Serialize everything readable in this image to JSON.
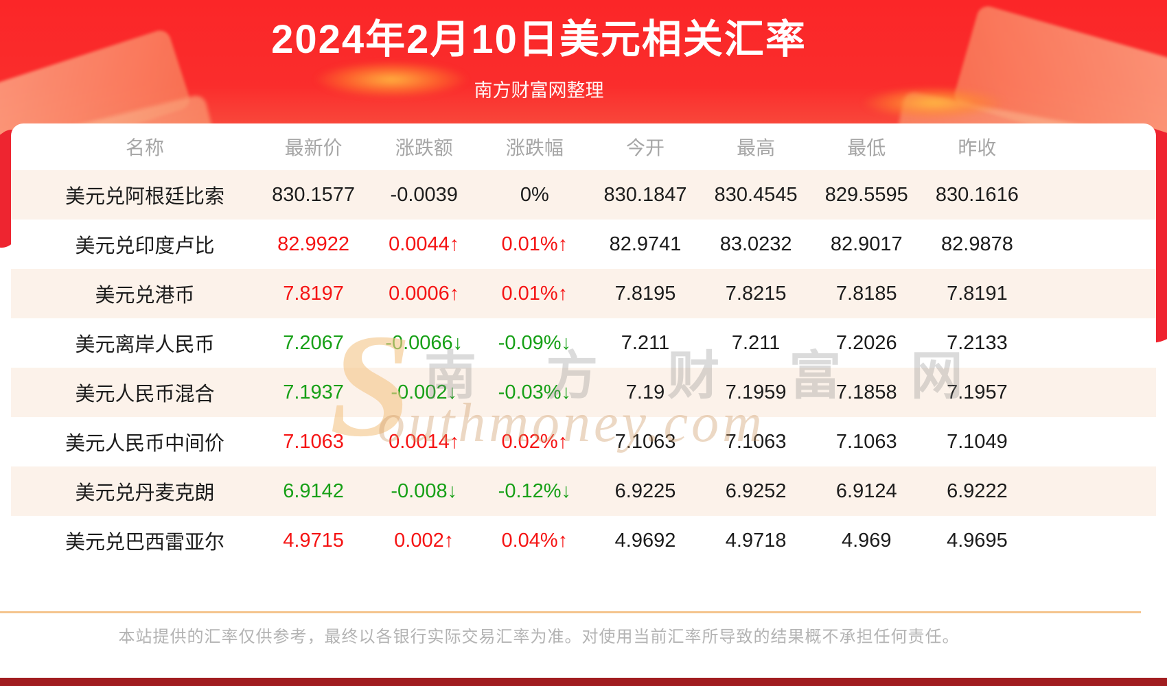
{
  "header": {
    "title": "2024年2月10日美元相关汇率",
    "subtitle": "南方财富网整理"
  },
  "table": {
    "columns": [
      "名称",
      "最新价",
      "涨跌额",
      "涨跌幅",
      "今开",
      "最高",
      "最低",
      "昨收"
    ],
    "rows": [
      {
        "name": "美元兑阿根廷比索",
        "latest": "830.1577",
        "change": "-0.0039",
        "change_pct": "0%",
        "open": "830.1847",
        "high": "830.4545",
        "low": "829.5595",
        "prev_close": "830.1616",
        "trend": "flat"
      },
      {
        "name": "美元兑印度卢比",
        "latest": "82.9922",
        "change": "0.0044↑",
        "change_pct": "0.01%↑",
        "open": "82.9741",
        "high": "83.0232",
        "low": "82.9017",
        "prev_close": "82.9878",
        "trend": "up"
      },
      {
        "name": "美元兑港币",
        "latest": "7.8197",
        "change": "0.0006↑",
        "change_pct": "0.01%↑",
        "open": "7.8195",
        "high": "7.8215",
        "low": "7.8185",
        "prev_close": "7.8191",
        "trend": "up"
      },
      {
        "name": "美元离岸人民币",
        "latest": "7.2067",
        "change": "-0.0066↓",
        "change_pct": "-0.09%↓",
        "open": "7.211",
        "high": "7.211",
        "low": "7.2026",
        "prev_close": "7.2133",
        "trend": "down"
      },
      {
        "name": "美元人民币混合",
        "latest": "7.1937",
        "change": "-0.002↓",
        "change_pct": "-0.03%↓",
        "open": "7.19",
        "high": "7.1959",
        "low": "7.1858",
        "prev_close": "7.1957",
        "trend": "down"
      },
      {
        "name": "美元人民币中间价",
        "latest": "7.1063",
        "change": "0.0014↑",
        "change_pct": "0.02%↑",
        "open": "7.1063",
        "high": "7.1063",
        "low": "7.1063",
        "prev_close": "7.1049",
        "trend": "up"
      },
      {
        "name": "美元兑丹麦克朗",
        "latest": "6.9142",
        "change": "-0.008↓",
        "change_pct": "-0.12%↓",
        "open": "6.9225",
        "high": "6.9252",
        "low": "6.9124",
        "prev_close": "6.9222",
        "trend": "down"
      },
      {
        "name": "美元兑巴西雷亚尔",
        "latest": "4.9715",
        "change": "0.002↑",
        "change_pct": "0.04%↑",
        "open": "4.9692",
        "high": "4.9718",
        "low": "4.969",
        "prev_close": "4.9695",
        "trend": "up"
      }
    ]
  },
  "chart_data": {
    "type": "table",
    "title": "2024年2月10日美元相关汇率",
    "subtitle": "南方财富网整理",
    "columns": [
      "名称",
      "最新价",
      "涨跌额",
      "涨跌幅",
      "今开",
      "最高",
      "最低",
      "昨收"
    ],
    "rows": [
      [
        "美元兑阿根廷比索",
        830.1577,
        -0.0039,
        "0%",
        830.1847,
        830.4545,
        829.5595,
        830.1616
      ],
      [
        "美元兑印度卢比",
        82.9922,
        0.0044,
        "0.01%",
        82.9741,
        83.0232,
        82.9017,
        82.9878
      ],
      [
        "美元兑港币",
        7.8197,
        0.0006,
        "0.01%",
        7.8195,
        7.8215,
        7.8185,
        7.8191
      ],
      [
        "美元离岸人民币",
        7.2067,
        -0.0066,
        "-0.09%",
        7.211,
        7.211,
        7.2026,
        7.2133
      ],
      [
        "美元人民币混合",
        7.1937,
        -0.002,
        "-0.03%",
        7.19,
        7.1959,
        7.1858,
        7.1957
      ],
      [
        "美元人民币中间价",
        7.1063,
        0.0014,
        "0.02%",
        7.1063,
        7.1063,
        7.1063,
        7.1049
      ],
      [
        "美元兑丹麦克朗",
        6.9142,
        -0.008,
        "-0.12%",
        6.9225,
        6.9252,
        6.9124,
        6.9222
      ],
      [
        "美元兑巴西雷亚尔",
        4.9715,
        0.002,
        "0.04%",
        4.9692,
        4.9718,
        4.969,
        4.9695
      ]
    ]
  },
  "watermark": {
    "s": "S",
    "cjk": "南 方 财 富 网",
    "script": "outhmoney.com"
  },
  "footer": {
    "disclaimer": "本站提供的汇率仅供参考，最终以各银行实际交易汇率为准。对使用当前汇率所导致的结果概不承担任何责任。"
  },
  "colors": {
    "up": "#f51414",
    "down": "#17a017",
    "banner_red": "#fb2628",
    "divider": "#f4c48e",
    "row_stripe": "#fcf2ea",
    "bottom_bar": "#a11d20"
  }
}
